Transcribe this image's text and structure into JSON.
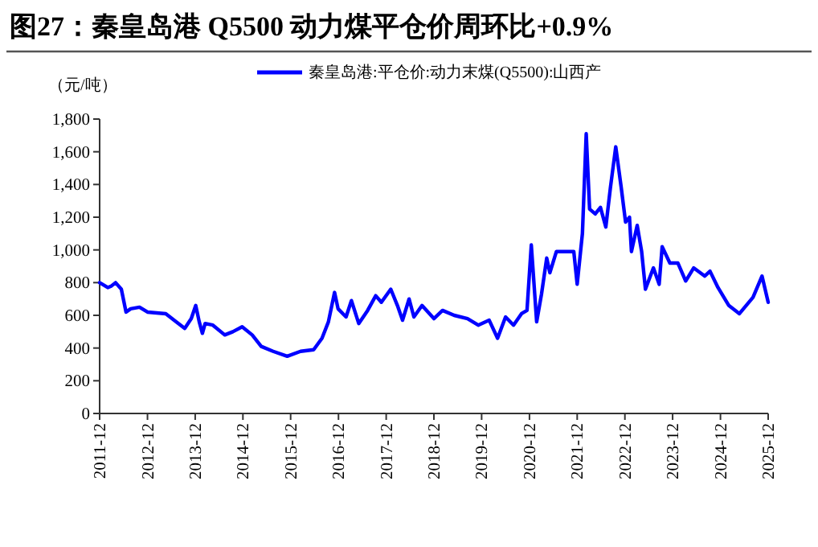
{
  "chart_data": {
    "type": "line",
    "title": "图27：秦皇岛港 Q5500 动力煤平仓价周环比+0.9%",
    "ylabel": "（元/吨）",
    "x": [
      "2011-12-01",
      "2012-02-01",
      "2012-03-01",
      "2012-04-01",
      "2012-05-15",
      "2012-06-20",
      "2012-07-25",
      "2012-10-01",
      "2012-12-01",
      "2013-04-20",
      "2013-07-10",
      "2013-09-12",
      "2013-11-01",
      "2013-12-05",
      "2014-01-01",
      "2014-01-25",
      "2014-02-15",
      "2014-04-15",
      "2014-07-15",
      "2014-09-15",
      "2014-11-25",
      "2015-02-10",
      "2015-04-20",
      "2015-07-20",
      "2015-11-05",
      "2016-02-15",
      "2016-05-25",
      "2016-07-28",
      "2016-09-15",
      "2016-11-01",
      "2016-11-28",
      "2017-01-28",
      "2017-03-10",
      "2017-05-05",
      "2017-07-12",
      "2017-09-12",
      "2017-10-25",
      "2018-01-05",
      "2018-02-25",
      "2018-04-05",
      "2018-05-25",
      "2018-07-01",
      "2018-09-01",
      "2018-12-01",
      "2019-02-05",
      "2019-05-05",
      "2019-08-15",
      "2019-11-05",
      "2020-01-28",
      "2020-04-01",
      "2020-06-01",
      "2020-08-01",
      "2020-10-01",
      "2020-11-12",
      "2020-12-15",
      "2021-01-25",
      "2021-03-03",
      "2021-04-12",
      "2021-05-06",
      "2021-06-25",
      "2021-11-05",
      "2021-12-01",
      "2022-01-10",
      "2022-02-08",
      "2022-03-06",
      "2022-04-18",
      "2022-05-28",
      "2022-07-08",
      "2022-08-12",
      "2022-09-22",
      "2022-11-03",
      "2022-12-06",
      "2023-01-05",
      "2023-01-20",
      "2023-03-05",
      "2023-04-08",
      "2023-05-07",
      "2023-07-07",
      "2023-08-20",
      "2023-09-12",
      "2023-11-10",
      "2024-01-10",
      "2024-03-10",
      "2024-05-10",
      "2024-08-03",
      "2024-09-12",
      "2024-11-12",
      "2025-02-03",
      "2025-04-25",
      "2025-08-07",
      "2025-10-15",
      "2025-12-01"
    ],
    "series": [
      {
        "name": "秦皇岛港:平仓价:动力末煤(Q5500):山西产",
        "color": "#0000ff",
        "values": [
          800,
          770,
          780,
          800,
          760,
          620,
          640,
          650,
          620,
          610,
          560,
          520,
          580,
          660,
          560,
          490,
          550,
          540,
          480,
          500,
          530,
          480,
          410,
          380,
          350,
          380,
          390,
          460,
          560,
          740,
          640,
          590,
          690,
          550,
          630,
          720,
          680,
          760,
          660,
          570,
          700,
          590,
          660,
          580,
          630,
          600,
          580,
          540,
          570,
          460,
          590,
          540,
          610,
          630,
          1030,
          560,
          730,
          950,
          860,
          990,
          990,
          790,
          1100,
          1710,
          1250,
          1220,
          1260,
          1140,
          1380,
          1630,
          1380,
          1170,
          1200,
          990,
          1150,
          990,
          760,
          890,
          790,
          1020,
          920,
          920,
          810,
          890,
          840,
          870,
          770,
          660,
          610,
          710,
          840,
          680
        ]
      }
    ],
    "xlim": [
      "2011-12",
      "2025-12"
    ],
    "xticks": [
      "2011-12",
      "2012-12",
      "2013-12",
      "2014-12",
      "2015-12",
      "2016-12",
      "2017-12",
      "2018-12",
      "2019-12",
      "2020-12",
      "2021-12",
      "2022-12",
      "2023-12",
      "2024-12",
      "2025-12"
    ],
    "ylim": [
      0,
      1800
    ],
    "yticks": [
      0,
      200,
      400,
      600,
      800,
      {
        "value": 1000,
        "label": "1,000"
      },
      {
        "value": 1200,
        "label": "1,200"
      },
      {
        "value": 1400,
        "label": "1,400"
      },
      {
        "value": 1600,
        "label": "1,600"
      },
      {
        "value": 1800,
        "label": "1,800"
      }
    ],
    "grid": false,
    "legend": "top",
    "marker": "none",
    "line_style": "solid"
  }
}
